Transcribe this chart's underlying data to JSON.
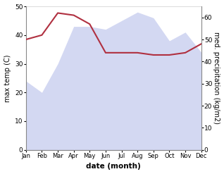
{
  "months": [
    "Jan",
    "Feb",
    "Mar",
    "Apr",
    "May",
    "Jun",
    "Jul",
    "Aug",
    "Sep",
    "Oct",
    "Nov",
    "Dec"
  ],
  "x": [
    0,
    1,
    2,
    3,
    4,
    5,
    6,
    7,
    8,
    9,
    10,
    11
  ],
  "temp": [
    24,
    20,
    30,
    43,
    43,
    42,
    45,
    48,
    46,
    38,
    41,
    34
  ],
  "precip": [
    50,
    52,
    62,
    61,
    57,
    44,
    44,
    44,
    43,
    43,
    44,
    48
  ],
  "temp_color": "#b0b8e8",
  "precip_color": "#b03040",
  "temp_alpha": 0.55,
  "ylim_temp": [
    0,
    50
  ],
  "ylim_precip": [
    0,
    65
  ],
  "ylabel_left": "max temp (C)",
  "ylabel_right": "med. precipitation (kg/m2)",
  "xlabel": "date (month)",
  "yticks_left": [
    0,
    10,
    20,
    30,
    40,
    50
  ],
  "yticks_right": [
    0,
    10,
    20,
    30,
    40,
    50,
    60
  ],
  "bg_color": "#ffffff"
}
